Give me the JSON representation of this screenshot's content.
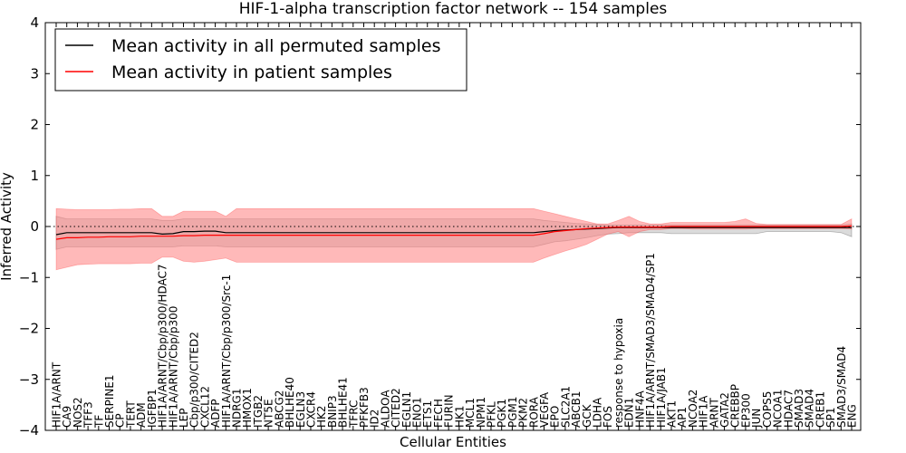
{
  "chart_data": {
    "type": "line",
    "title": "HIF-1-alpha transcription factor network -- 154 samples",
    "xlabel": "Cellular Entities",
    "ylabel": "Inferred Activity",
    "ylim": [
      -4,
      4
    ],
    "yticks": [
      -4,
      -3,
      -2,
      -1,
      0,
      1,
      2,
      3,
      4
    ],
    "ytick_labels": [
      "−4",
      "−3",
      "−2",
      "−1",
      "0",
      "1",
      "2",
      "3",
      "4"
    ],
    "legend_position": "top-left",
    "reference_line": {
      "y": 0,
      "style": "dotted"
    },
    "categories": [
      "HIF1A/ARNT",
      "CA9",
      "NOS2",
      "TFF3",
      "TF",
      "SERPINE1",
      "CP",
      "TERT",
      "ADM",
      "IGFBP1",
      "HIF1A/ARNT/Cbp/p300/HDAC7",
      "HIF1A/ARNT/Cbp/p300",
      "LEP",
      "Cbp/p300/CITED2",
      "CXCL12",
      "ADFP",
      "HIF1A/ARNT/Cbp/p300/Src-1",
      "NDRG1",
      "HMOX1",
      "ITGB2",
      "NT5E",
      "ABCG2",
      "BHLHE40",
      "EGLN3",
      "CXCR4",
      "HK2",
      "BNIP3",
      "BHLHE41",
      "TFRC",
      "PFKFB3",
      "ID2",
      "ALDOA",
      "CITED2",
      "EGLN1",
      "ENO1",
      "ETS1",
      "FECH",
      "FURIN",
      "HK1",
      "MCL1",
      "NPM1",
      "PFKL",
      "PGK1",
      "PGM1",
      "PKM2",
      "RORA",
      "VEGFA",
      "EPO",
      "SLC2A1",
      "ABCB1",
      "GCK",
      "LDHA",
      "FOS",
      "response to hypoxia",
      "EDN1",
      "HNF4A",
      "HIF1A/ARNT/SMAD3/SMAD4/SP1",
      "HIF1A/JAB1",
      "AKT1",
      "AP1",
      "NCOA2",
      "HIF1A",
      "ARNT",
      "GATA2",
      "CREBBP",
      "EP300",
      "JUN",
      "COPS5",
      "NCOA1",
      "HDAC7",
      "SMAD3",
      "SMAD4",
      "CREB1",
      "SP1",
      "SMAD3/SMAD4",
      "ENG"
    ],
    "series": [
      {
        "name": "Mean activity in all permuted samples",
        "color": "#000000",
        "band_color": "#b0b0b0",
        "values": [
          -0.16,
          -0.12,
          -0.12,
          -0.12,
          -0.12,
          -0.12,
          -0.12,
          -0.12,
          -0.12,
          -0.12,
          -0.15,
          -0.14,
          -0.1,
          -0.1,
          -0.09,
          -0.09,
          -0.12,
          -0.12,
          -0.12,
          -0.12,
          -0.12,
          -0.12,
          -0.12,
          -0.12,
          -0.12,
          -0.12,
          -0.12,
          -0.12,
          -0.12,
          -0.12,
          -0.12,
          -0.12,
          -0.12,
          -0.12,
          -0.12,
          -0.12,
          -0.12,
          -0.12,
          -0.12,
          -0.12,
          -0.12,
          -0.12,
          -0.12,
          -0.12,
          -0.12,
          -0.12,
          -0.1,
          -0.08,
          -0.07,
          -0.06,
          -0.05,
          -0.04,
          -0.03,
          -0.02,
          -0.02,
          -0.02,
          -0.02,
          -0.02,
          -0.02,
          -0.02,
          -0.02,
          -0.02,
          -0.02,
          -0.02,
          -0.02,
          -0.02,
          -0.02,
          -0.02,
          -0.02,
          -0.02,
          -0.02,
          -0.02,
          -0.02,
          -0.02,
          -0.02,
          -0.02
        ],
        "lower": [
          -0.45,
          -0.4,
          -0.4,
          -0.4,
          -0.4,
          -0.4,
          -0.4,
          -0.4,
          -0.4,
          -0.4,
          -0.4,
          -0.4,
          -0.38,
          -0.38,
          -0.38,
          -0.38,
          -0.4,
          -0.4,
          -0.4,
          -0.4,
          -0.4,
          -0.4,
          -0.4,
          -0.4,
          -0.4,
          -0.4,
          -0.4,
          -0.4,
          -0.4,
          -0.4,
          -0.4,
          -0.4,
          -0.4,
          -0.4,
          -0.4,
          -0.4,
          -0.4,
          -0.4,
          -0.4,
          -0.4,
          -0.4,
          -0.4,
          -0.4,
          -0.4,
          -0.4,
          -0.4,
          -0.35,
          -0.3,
          -0.28,
          -0.25,
          -0.22,
          -0.18,
          -0.15,
          -0.14,
          -0.12,
          -0.12,
          -0.12,
          -0.12,
          -0.14,
          -0.14,
          -0.14,
          -0.14,
          -0.14,
          -0.14,
          -0.14,
          -0.14,
          -0.14,
          -0.1,
          -0.1,
          -0.1,
          -0.1,
          -0.1,
          -0.1,
          -0.1,
          -0.12,
          -0.2
        ],
        "upper": [
          0.2,
          0.15,
          0.15,
          0.15,
          0.15,
          0.15,
          0.15,
          0.15,
          0.15,
          0.15,
          0.12,
          0.12,
          0.15,
          0.15,
          0.15,
          0.15,
          0.15,
          0.15,
          0.15,
          0.15,
          0.15,
          0.15,
          0.15,
          0.15,
          0.15,
          0.15,
          0.15,
          0.15,
          0.15,
          0.15,
          0.15,
          0.15,
          0.15,
          0.15,
          0.15,
          0.15,
          0.15,
          0.15,
          0.15,
          0.15,
          0.15,
          0.15,
          0.15,
          0.15,
          0.15,
          0.15,
          0.12,
          0.1,
          0.08,
          0.06,
          0.05,
          0.04,
          0.03,
          0.03,
          0.03,
          0.03,
          0.03,
          0.03,
          0.03,
          0.03,
          0.03,
          0.03,
          0.03,
          0.03,
          0.03,
          0.03,
          0.03,
          0.03,
          0.03,
          0.03,
          0.03,
          0.03,
          0.03,
          0.03,
          0.03,
          0.05
        ]
      },
      {
        "name": "Mean activity in patient samples",
        "color": "#ff0000",
        "band_color": "#ff8080",
        "values": [
          -0.25,
          -0.22,
          -0.22,
          -0.21,
          -0.21,
          -0.2,
          -0.2,
          -0.2,
          -0.19,
          -0.19,
          -0.19,
          -0.19,
          -0.18,
          -0.18,
          -0.17,
          -0.17,
          -0.17,
          -0.17,
          -0.17,
          -0.17,
          -0.17,
          -0.17,
          -0.17,
          -0.17,
          -0.17,
          -0.17,
          -0.17,
          -0.17,
          -0.17,
          -0.17,
          -0.17,
          -0.17,
          -0.17,
          -0.17,
          -0.17,
          -0.17,
          -0.17,
          -0.17,
          -0.17,
          -0.17,
          -0.17,
          -0.17,
          -0.17,
          -0.17,
          -0.17,
          -0.17,
          -0.14,
          -0.1,
          -0.08,
          -0.06,
          -0.04,
          -0.03,
          -0.02,
          -0.01,
          -0.01,
          -0.01,
          -0.01,
          -0.01,
          0.0,
          0.0,
          0.0,
          0.0,
          0.0,
          0.0,
          0.0,
          0.0,
          0.0,
          0.0,
          0.0,
          0.0,
          0.0,
          0.0,
          0.0,
          0.0,
          0.0,
          0.01
        ],
        "lower": [
          -0.85,
          -0.8,
          -0.75,
          -0.74,
          -0.73,
          -0.73,
          -0.73,
          -0.73,
          -0.72,
          -0.72,
          -0.6,
          -0.6,
          -0.68,
          -0.7,
          -0.68,
          -0.65,
          -0.62,
          -0.7,
          -0.7,
          -0.7,
          -0.7,
          -0.7,
          -0.7,
          -0.7,
          -0.7,
          -0.7,
          -0.7,
          -0.7,
          -0.7,
          -0.7,
          -0.7,
          -0.7,
          -0.7,
          -0.7,
          -0.7,
          -0.7,
          -0.7,
          -0.7,
          -0.7,
          -0.7,
          -0.7,
          -0.7,
          -0.7,
          -0.7,
          -0.7,
          -0.7,
          -0.62,
          -0.55,
          -0.48,
          -0.42,
          -0.35,
          -0.25,
          -0.15,
          -0.1,
          -0.2,
          -0.1,
          -0.06,
          -0.06,
          -0.04,
          -0.04,
          -0.05,
          -0.05,
          -0.05,
          -0.05,
          -0.05,
          -0.05,
          -0.04,
          -0.04,
          -0.04,
          -0.04,
          -0.04,
          -0.04,
          -0.04,
          -0.04,
          -0.04,
          -0.05
        ],
        "upper": [
          0.35,
          0.34,
          0.33,
          0.33,
          0.33,
          0.33,
          0.34,
          0.34,
          0.35,
          0.35,
          0.2,
          0.2,
          0.3,
          0.3,
          0.3,
          0.3,
          0.2,
          0.35,
          0.35,
          0.35,
          0.35,
          0.35,
          0.35,
          0.35,
          0.35,
          0.35,
          0.35,
          0.35,
          0.35,
          0.35,
          0.35,
          0.35,
          0.35,
          0.35,
          0.35,
          0.35,
          0.35,
          0.35,
          0.35,
          0.35,
          0.35,
          0.35,
          0.35,
          0.35,
          0.35,
          0.35,
          0.3,
          0.25,
          0.2,
          0.15,
          0.1,
          0.05,
          0.05,
          0.12,
          0.2,
          0.1,
          0.05,
          0.05,
          0.08,
          0.08,
          0.08,
          0.08,
          0.08,
          0.08,
          0.1,
          0.15,
          0.06,
          0.04,
          0.04,
          0.04,
          0.04,
          0.04,
          0.04,
          0.04,
          0.04,
          0.15
        ]
      }
    ]
  }
}
